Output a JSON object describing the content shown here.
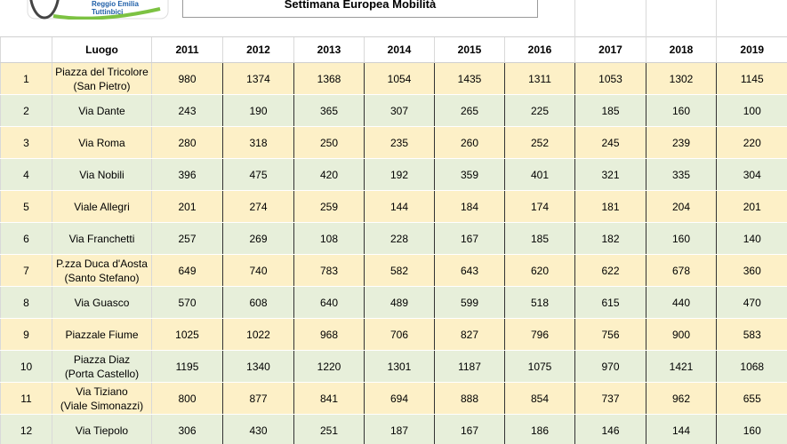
{
  "logo": {
    "line1": "Reggio Emilia",
    "line2": "Tuttinbici"
  },
  "header": {
    "title": "Settimana Europea Mobilità"
  },
  "table": {
    "columns": [
      "Luogo",
      "2011",
      "2012",
      "2013",
      "2014",
      "2015",
      "2016",
      "2017",
      "2018",
      "2019"
    ],
    "rows": [
      [
        1,
        "Piazza del Tricolore\n(San Pietro)",
        980,
        1374,
        1368,
        1054,
        1435,
        1311,
        1053,
        1302,
        1145
      ],
      [
        2,
        "Via Dante",
        243,
        190,
        365,
        307,
        265,
        225,
        185,
        160,
        100
      ],
      [
        3,
        "Via Roma",
        280,
        318,
        250,
        235,
        260,
        252,
        245,
        239,
        220
      ],
      [
        4,
        "Via Nobili",
        396,
        475,
        420,
        192,
        359,
        401,
        321,
        335,
        304
      ],
      [
        5,
        "Viale Allegri",
        201,
        274,
        259,
        144,
        184,
        174,
        181,
        204,
        201
      ],
      [
        6,
        "Via Franchetti",
        257,
        269,
        108,
        228,
        167,
        185,
        182,
        160,
        140
      ],
      [
        7,
        "P.zza Duca d'Aosta\n(Santo Stefano)",
        649,
        740,
        783,
        582,
        643,
        620,
        622,
        678,
        360
      ],
      [
        8,
        "Via Guasco",
        570,
        608,
        640,
        489,
        599,
        518,
        615,
        440,
        470
      ],
      [
        9,
        "Piazzale Fiume",
        1025,
        1022,
        968,
        706,
        827,
        796,
        756,
        900,
        583
      ],
      [
        10,
        "Piazza Diaz\n(Porta Castello)",
        1195,
        1340,
        1220,
        1301,
        1187,
        1075,
        970,
        1421,
        1068
      ],
      [
        11,
        "Via Tiziano\n(Viale Simonazzi)",
        800,
        877,
        841,
        694,
        888,
        854,
        737,
        962,
        655
      ],
      [
        12,
        "Via Tiepolo",
        306,
        430,
        251,
        187,
        167,
        186,
        146,
        144,
        160
      ]
    ]
  }
}
